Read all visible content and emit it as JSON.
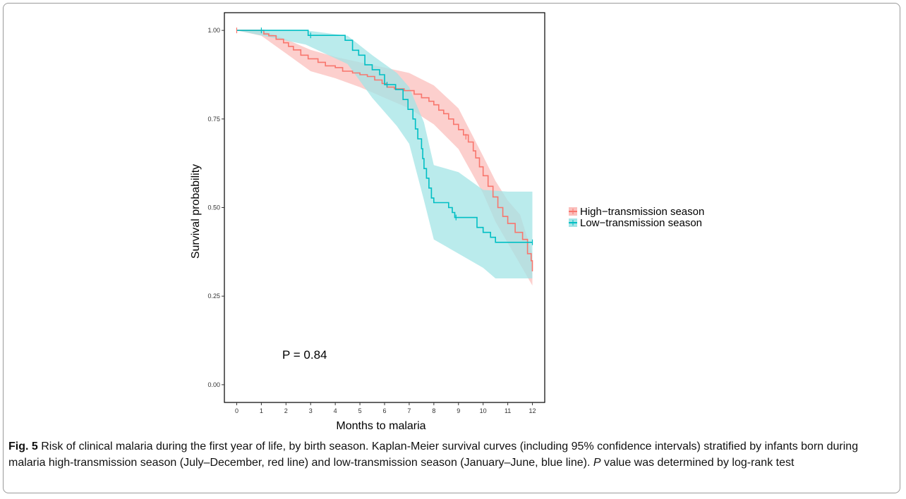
{
  "chart_data": {
    "type": "line",
    "subtype": "kaplan-meier survival curve with 95% confidence bands",
    "xlabel": "Months to malaria",
    "ylabel": "Survival probability",
    "xlim": [
      -0.5,
      12.5
    ],
    "ylim": [
      -0.05,
      1.05
    ],
    "x_ticks": [
      0,
      1,
      2,
      3,
      4,
      5,
      6,
      7,
      8,
      9,
      10,
      11,
      12
    ],
    "y_ticks": [
      0.0,
      0.25,
      0.5,
      0.75,
      1.0
    ],
    "y_tick_labels": [
      "0.00",
      "0.25",
      "0.50",
      "0.75",
      "1.00"
    ],
    "grid": false,
    "legend_position": "right",
    "annotation": "P = 0.84",
    "series": [
      {
        "name": "High−transmission season",
        "color": "#F8766D",
        "band_color": "#FBBFBC",
        "steps": [
          [
            0,
            1.0
          ],
          [
            1.1,
            0.99
          ],
          [
            1.3,
            0.985
          ],
          [
            1.6,
            0.975
          ],
          [
            1.9,
            0.965
          ],
          [
            2.1,
            0.955
          ],
          [
            2.3,
            0.945
          ],
          [
            2.6,
            0.93
          ],
          [
            2.9,
            0.92
          ],
          [
            3.3,
            0.91
          ],
          [
            3.6,
            0.9
          ],
          [
            4.0,
            0.895
          ],
          [
            4.3,
            0.885
          ],
          [
            4.7,
            0.88
          ],
          [
            5.0,
            0.875
          ],
          [
            5.3,
            0.87
          ],
          [
            5.6,
            0.86
          ],
          [
            5.9,
            0.85
          ],
          [
            6.1,
            0.84
          ],
          [
            6.4,
            0.835
          ],
          [
            6.8,
            0.83
          ],
          [
            7.2,
            0.82
          ],
          [
            7.5,
            0.81
          ],
          [
            7.8,
            0.8
          ],
          [
            8.0,
            0.79
          ],
          [
            8.2,
            0.775
          ],
          [
            8.4,
            0.765
          ],
          [
            8.6,
            0.75
          ],
          [
            8.8,
            0.735
          ],
          [
            9.0,
            0.72
          ],
          [
            9.2,
            0.705
          ],
          [
            9.4,
            0.685
          ],
          [
            9.6,
            0.66
          ],
          [
            9.7,
            0.64
          ],
          [
            9.85,
            0.615
          ],
          [
            10.0,
            0.59
          ],
          [
            10.2,
            0.56
          ],
          [
            10.4,
            0.53
          ],
          [
            10.6,
            0.5
          ],
          [
            10.8,
            0.475
          ],
          [
            11.0,
            0.455
          ],
          [
            11.3,
            0.43
          ],
          [
            11.6,
            0.41
          ],
          [
            11.8,
            0.37
          ],
          [
            11.95,
            0.35
          ],
          [
            12.0,
            0.32
          ]
        ],
        "lower": [
          [
            0,
            1.0
          ],
          [
            1,
            0.985
          ],
          [
            2,
            0.935
          ],
          [
            3,
            0.885
          ],
          [
            4,
            0.865
          ],
          [
            5,
            0.84
          ],
          [
            6,
            0.81
          ],
          [
            7,
            0.78
          ],
          [
            8,
            0.735
          ],
          [
            9,
            0.665
          ],
          [
            10,
            0.54
          ],
          [
            10.5,
            0.46
          ],
          [
            11,
            0.4
          ],
          [
            11.5,
            0.34
          ],
          [
            12,
            0.28
          ]
        ],
        "upper": [
          [
            0,
            1.0
          ],
          [
            1,
            1.0
          ],
          [
            2,
            0.975
          ],
          [
            3,
            0.945
          ],
          [
            4,
            0.925
          ],
          [
            5,
            0.91
          ],
          [
            6,
            0.895
          ],
          [
            7,
            0.88
          ],
          [
            8,
            0.845
          ],
          [
            9,
            0.78
          ],
          [
            10,
            0.645
          ],
          [
            10.5,
            0.575
          ],
          [
            11,
            0.52
          ],
          [
            11.5,
            0.48
          ],
          [
            12,
            0.37
          ]
        ],
        "censored": [
          [
            0,
            1.0
          ],
          [
            9.3,
            0.7
          ]
        ]
      },
      {
        "name": "Low−transmission season",
        "color": "#00BFC4",
        "band_color": "#A3E4E6",
        "steps": [
          [
            0,
            1.0
          ],
          [
            2.9,
            0.986
          ],
          [
            4.4,
            0.972
          ],
          [
            4.7,
            0.944
          ],
          [
            4.95,
            0.93
          ],
          [
            5.2,
            0.903
          ],
          [
            5.5,
            0.889
          ],
          [
            5.8,
            0.875
          ],
          [
            6.0,
            0.847
          ],
          [
            6.45,
            0.833
          ],
          [
            6.75,
            0.805
          ],
          [
            6.95,
            0.777
          ],
          [
            7.15,
            0.75
          ],
          [
            7.25,
            0.722
          ],
          [
            7.35,
            0.694
          ],
          [
            7.5,
            0.666
          ],
          [
            7.55,
            0.638
          ],
          [
            7.6,
            0.61
          ],
          [
            7.7,
            0.583
          ],
          [
            7.8,
            0.555
          ],
          [
            7.9,
            0.527
          ],
          [
            8.0,
            0.514
          ],
          [
            8.6,
            0.5
          ],
          [
            8.75,
            0.486
          ],
          [
            8.85,
            0.472
          ],
          [
            9.75,
            0.444
          ],
          [
            10.0,
            0.43
          ],
          [
            10.3,
            0.416
          ],
          [
            10.5,
            0.402
          ]
        ],
        "lower": [
          [
            0,
            1.0
          ],
          [
            2.8,
            0.96
          ],
          [
            4.5,
            0.905
          ],
          [
            5.5,
            0.81
          ],
          [
            6.5,
            0.73
          ],
          [
            7,
            0.68
          ],
          [
            7.3,
            0.6
          ],
          [
            7.6,
            0.52
          ],
          [
            8,
            0.41
          ],
          [
            9,
            0.37
          ],
          [
            10,
            0.33
          ],
          [
            10.5,
            0.3
          ],
          [
            12,
            0.3
          ]
        ],
        "upper": [
          [
            0,
            1.0
          ],
          [
            2.8,
            1.0
          ],
          [
            4.5,
            0.985
          ],
          [
            5.5,
            0.93
          ],
          [
            6.5,
            0.88
          ],
          [
            7,
            0.84
          ],
          [
            7.3,
            0.79
          ],
          [
            7.6,
            0.74
          ],
          [
            8,
            0.62
          ],
          [
            9,
            0.6
          ],
          [
            10,
            0.55
          ],
          [
            11,
            0.545
          ],
          [
            12,
            0.545
          ]
        ],
        "censored": [
          [
            1.0,
            1.0
          ],
          [
            3.0,
            0.986
          ],
          [
            6.1,
            0.847
          ],
          [
            8.9,
            0.472
          ],
          [
            12.0,
            0.402
          ]
        ]
      }
    ]
  },
  "caption": {
    "label": "Fig. 5",
    "text_1": " Risk of clinical malaria during the first year of life, by birth season. Kaplan-Meier survival curves (including 95% confidence intervals) stratified by infants born during malaria high-transmission season (July–December, red line) and low-transmission season (January–June, blue line). ",
    "p_label": "P",
    "text_2": " value was determined by log-rank test"
  }
}
